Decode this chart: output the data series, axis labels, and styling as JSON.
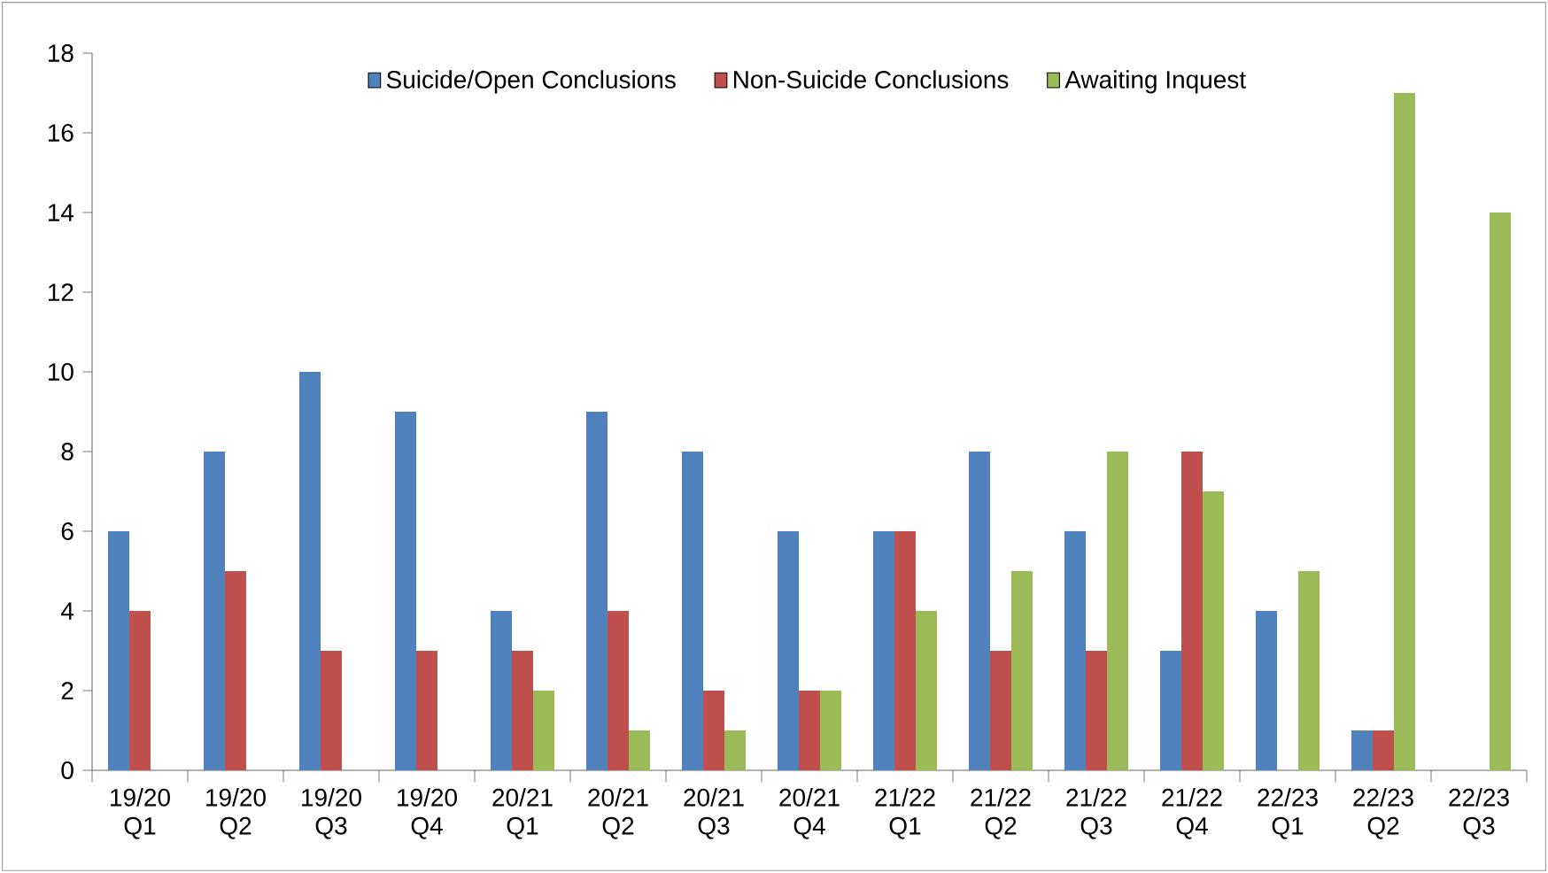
{
  "chart_data": {
    "type": "bar",
    "categories": [
      "19/20 Q1",
      "19/20 Q2",
      "19/20 Q3",
      "19/20 Q4",
      "20/21 Q1",
      "20/21 Q2",
      "20/21 Q3",
      "20/21 Q4",
      "21/22 Q1",
      "21/22 Q2",
      "21/22 Q3",
      "21/22 Q4",
      "22/23 Q1",
      "22/23 Q2",
      "22/23 Q3"
    ],
    "series": [
      {
        "name": "Suicide/Open Conclusions",
        "color": "#4f81bd",
        "values": [
          6,
          8,
          10,
          9,
          4,
          9,
          8,
          6,
          6,
          8,
          6,
          3,
          4,
          1,
          0
        ]
      },
      {
        "name": "Non-Suicide Conclusions",
        "color": "#c0504d",
        "values": [
          4,
          5,
          3,
          3,
          3,
          4,
          2,
          2,
          6,
          3,
          3,
          8,
          0,
          1,
          0
        ]
      },
      {
        "name": "Awaiting Inquest",
        "color": "#9bbb59",
        "values": [
          0,
          0,
          0,
          0,
          2,
          1,
          1,
          2,
          4,
          5,
          8,
          7,
          5,
          17,
          14
        ]
      }
    ],
    "ylim": [
      0,
      18
    ],
    "yticks": [
      0,
      2,
      4,
      6,
      8,
      10,
      12,
      14,
      16,
      18
    ],
    "grid": false,
    "legend": "top"
  }
}
